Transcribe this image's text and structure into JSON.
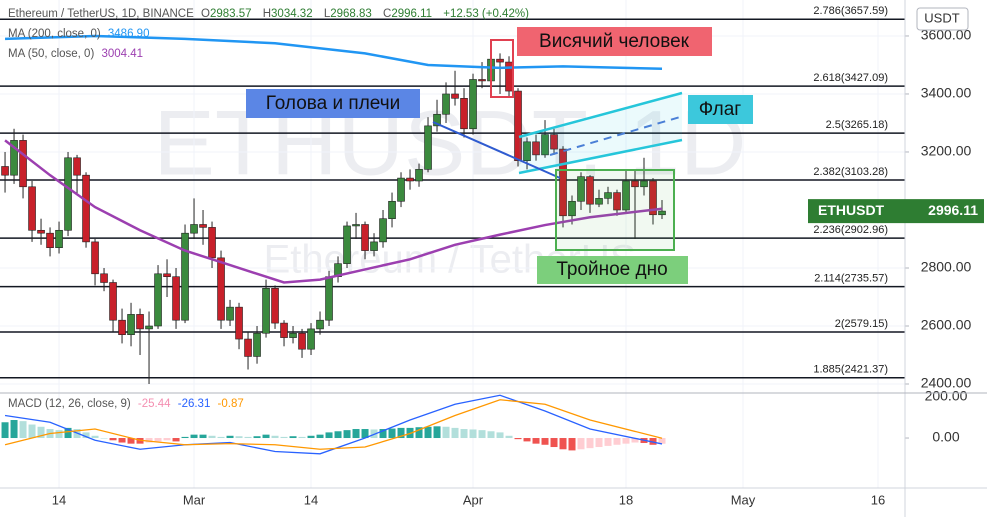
{
  "chart_data": [
    {
      "type": "candlestick",
      "title": "Ethereum / TetherUS, 1D, BINANCE",
      "ohlc_letters": [
        "O",
        "H",
        "L",
        "C"
      ],
      "change": "+12.53 (+0.42%)",
      "currency": "USDT",
      "symbol": "ETHUSDT",
      "watermark": [
        "ETHUSDT, 1D",
        "Ethereum / TetherUS"
      ],
      "annotations": {
        "head_shoulders": "Голова и плечи",
        "hanging_man": "Висячий человек",
        "flag": "Флаг",
        "triple_bottom": "Тройное дно"
      },
      "up_color": "#3b8a3e",
      "down_color": "#c8202a",
      "grid": true,
      "x": [
        0,
        1,
        2,
        3,
        4,
        5,
        6,
        7,
        8,
        9,
        10,
        11,
        12,
        13,
        14,
        15,
        16,
        17,
        18,
        19,
        20,
        21,
        22,
        23,
        24,
        25,
        26,
        27,
        28,
        29,
        30,
        31,
        32,
        33,
        34,
        35,
        36,
        37,
        38,
        39,
        40,
        41,
        42,
        43,
        44,
        45,
        46,
        47,
        48,
        49,
        50,
        51,
        52,
        53,
        54,
        55,
        56,
        57,
        58,
        59,
        60,
        61,
        62,
        63,
        64,
        65,
        66,
        67,
        68,
        69,
        70,
        71,
        72,
        73
      ],
      "open": [
        3150,
        3120,
        3240,
        3080,
        2930,
        2920,
        2870,
        2930,
        3180,
        3120,
        2890,
        2780,
        2750,
        2620,
        2570,
        2640,
        2590,
        2600,
        2780,
        2770,
        2620,
        2920,
        2950,
        2940,
        2835,
        2620,
        2665,
        2555,
        2495,
        2575,
        2730,
        2610,
        2560,
        2575,
        2520,
        2590,
        2620,
        2770,
        2815,
        2945,
        2950,
        2860,
        2890,
        2970,
        3030,
        3110,
        3100,
        3140,
        3290,
        3330,
        3400,
        3385,
        3280,
        3450,
        3445,
        3520,
        3510,
        3410,
        3170,
        3235,
        3190,
        3260,
        3210,
        2980,
        3030,
        3115,
        3020,
        3040,
        3060,
        3000,
        3100,
        3080,
        3100,
        2983.57
      ],
      "high": [
        3200,
        3280,
        3260,
        3100,
        2970,
        2940,
        2960,
        3200,
        3190,
        3130,
        2900,
        2800,
        2760,
        2660,
        2680,
        2660,
        2650,
        2810,
        2830,
        2800,
        2950,
        3040,
        3000,
        2960,
        2860,
        2690,
        2680,
        2580,
        2600,
        2760,
        2740,
        2620,
        2600,
        2590,
        2610,
        2650,
        2790,
        2840,
        2960,
        2990,
        2960,
        2920,
        3000,
        3060,
        3130,
        3140,
        3160,
        3320,
        3380,
        3440,
        3480,
        3420,
        3470,
        3510,
        3560,
        3540,
        3530,
        3420,
        3250,
        3260,
        3310,
        3280,
        3220,
        3050,
        3130,
        3120,
        3070,
        3080,
        3070,
        3140,
        3140,
        3180,
        3110,
        3034.32
      ],
      "low": [
        3060,
        3090,
        3040,
        2890,
        2880,
        2840,
        2850,
        2910,
        3050,
        2870,
        2740,
        2720,
        2580,
        2540,
        2530,
        2500,
        2400,
        2590,
        2700,
        2590,
        2610,
        2900,
        2880,
        2800,
        2590,
        2600,
        2520,
        2450,
        2470,
        2560,
        2590,
        2530,
        2540,
        2490,
        2500,
        2570,
        2600,
        2750,
        2800,
        2900,
        2830,
        2840,
        2870,
        2940,
        3010,
        3070,
        3080,
        3130,
        3270,
        3300,
        3360,
        3250,
        3260,
        3420,
        3430,
        3400,
        3390,
        3150,
        3140,
        3170,
        3180,
        3190,
        2940,
        2950,
        3000,
        2990,
        3010,
        3020,
        2980,
        2990,
        2900,
        3050,
        2950,
        2968.83
      ],
      "close": [
        3120,
        3240,
        3080,
        2930,
        2920,
        2870,
        2930,
        3180,
        3120,
        2890,
        2780,
        2750,
        2620,
        2570,
        2640,
        2590,
        2600,
        2780,
        2770,
        2620,
        2920,
        2950,
        2940,
        2835,
        2620,
        2665,
        2555,
        2495,
        2575,
        2730,
        2610,
        2560,
        2575,
        2520,
        2590,
        2620,
        2770,
        2815,
        2945,
        2950,
        2860,
        2890,
        2970,
        3030,
        3110,
        3100,
        3140,
        3290,
        3330,
        3400,
        3385,
        3280,
        3450,
        3445,
        3520,
        3510,
        3410,
        3170,
        3235,
        3190,
        3260,
        3210,
        2980,
        3030,
        3115,
        3020,
        3040,
        3060,
        3000,
        3100,
        3080,
        3100,
        2983.57,
        2996.11
      ],
      "lines": [
        {
          "name": "MA (200, close, 0)",
          "legend_value": "3486.90",
          "color": "#2196f3",
          "x": [
            0,
            10,
            20,
            30,
            40,
            47,
            55,
            62,
            73
          ],
          "values": [
            3590,
            3600,
            3590,
            3575,
            3540,
            3500,
            3490,
            3495,
            3486.9
          ]
        },
        {
          "name": "MA (50, close, 0)",
          "legend_value": "3004.41",
          "color": "#9c3fb0",
          "x": [
            0,
            5,
            10,
            15,
            20,
            25,
            31,
            35,
            40,
            45,
            50,
            55,
            60,
            65,
            73
          ],
          "values": [
            3240,
            3120,
            3010,
            2930,
            2860,
            2810,
            2750,
            2760,
            2795,
            2830,
            2880,
            2915,
            2948,
            2975,
            3004.41
          ]
        }
      ],
      "fib_color": "#131722",
      "fib_levels": {
        "values": [
          3657.59,
          3427.09,
          3265.18,
          3103.28,
          2902.96,
          2735.57,
          2579.15,
          2421.37
        ],
        "value_labels": [
          "2.786(3657.59)",
          "2.618(3427.09)",
          "2.5(3265.18)",
          "2.382(3103.28)",
          "2.236(2902.96)",
          "2.114(2735.57)",
          "2(2579.15)",
          "1.885(2421.37)"
        ]
      },
      "xlim": [
        -0.56,
        100
      ],
      "xticks": [
        {
          "value": 6,
          "label": "14"
        },
        {
          "value": 21,
          "label": "Mar"
        },
        {
          "value": 34,
          "label": "14"
        },
        {
          "value": 52,
          "label": "Apr"
        },
        {
          "value": 69,
          "label": "18"
        },
        {
          "value": 82,
          "label": "May"
        },
        {
          "value": 97,
          "label": "16"
        }
      ],
      "ylim": [
        2369,
        3724
      ],
      "yticks": [
        {
          "value": 2400,
          "label": "2400.00"
        },
        {
          "value": 2600,
          "label": "2600.00"
        },
        {
          "value": 2800,
          "label": "2800.00"
        },
        {
          "value": 3200,
          "label": "3200.00"
        },
        {
          "value": 3400,
          "label": "3400.00"
        },
        {
          "value": 3600,
          "label": "3600.00"
        }
      ],
      "tag_color": "#2e7d32"
    },
    {
      "type": "macd",
      "title": "MACD (12, 26, close, 9)",
      "histogram": {
        "colors": {
          "grow_up": "#26a69a",
          "fall_up": "#b2dfdb",
          "grow_down": "#ef5350",
          "fall_down": "#ffcdd2"
        },
        "values": [
          70,
          80,
          75,
          60,
          50,
          40,
          35,
          45,
          40,
          25,
          10,
          0,
          -10,
          -20,
          -25,
          -25,
          -20,
          -15,
          -10,
          -15,
          5,
          15,
          15,
          10,
          5,
          10,
          8,
          5,
          8,
          15,
          10,
          5,
          8,
          5,
          10,
          15,
          25,
          30,
          35,
          40,
          40,
          38,
          40,
          42,
          45,
          45,
          48,
          50,
          52,
          50,
          45,
          40,
          38,
          35,
          30,
          25,
          10,
          -5,
          -15,
          -25,
          -30,
          -40,
          -50,
          -55,
          -50,
          -45,
          -40,
          -35,
          -30,
          -25,
          -20,
          -22,
          -30,
          -25.44
        ]
      },
      "series": [
        {
          "color": "#2962ff",
          "x": [
            0,
            5,
            10,
            15,
            20,
            25,
            30,
            35,
            40,
            45,
            50,
            55,
            60,
            65,
            73
          ],
          "values": [
            100,
            70,
            -10,
            -50,
            -30,
            -20,
            -60,
            -70,
            0,
            80,
            150,
            190,
            120,
            40,
            -26.31
          ]
        },
        {
          "color": "#ff9800",
          "x": [
            0,
            5,
            10,
            15,
            20,
            25,
            30,
            35,
            40,
            45,
            50,
            55,
            60,
            65,
            73
          ],
          "values": [
            -30,
            20,
            40,
            -10,
            -30,
            -25,
            -30,
            -50,
            -40,
            20,
            100,
            170,
            150,
            80,
            -0.87
          ]
        }
      ],
      "ylim": [
        -222,
        200
      ],
      "yticks": [
        {
          "value": 0,
          "label": "0.00"
        },
        {
          "value": 200,
          "label": "200.00"
        }
      ]
    }
  ]
}
